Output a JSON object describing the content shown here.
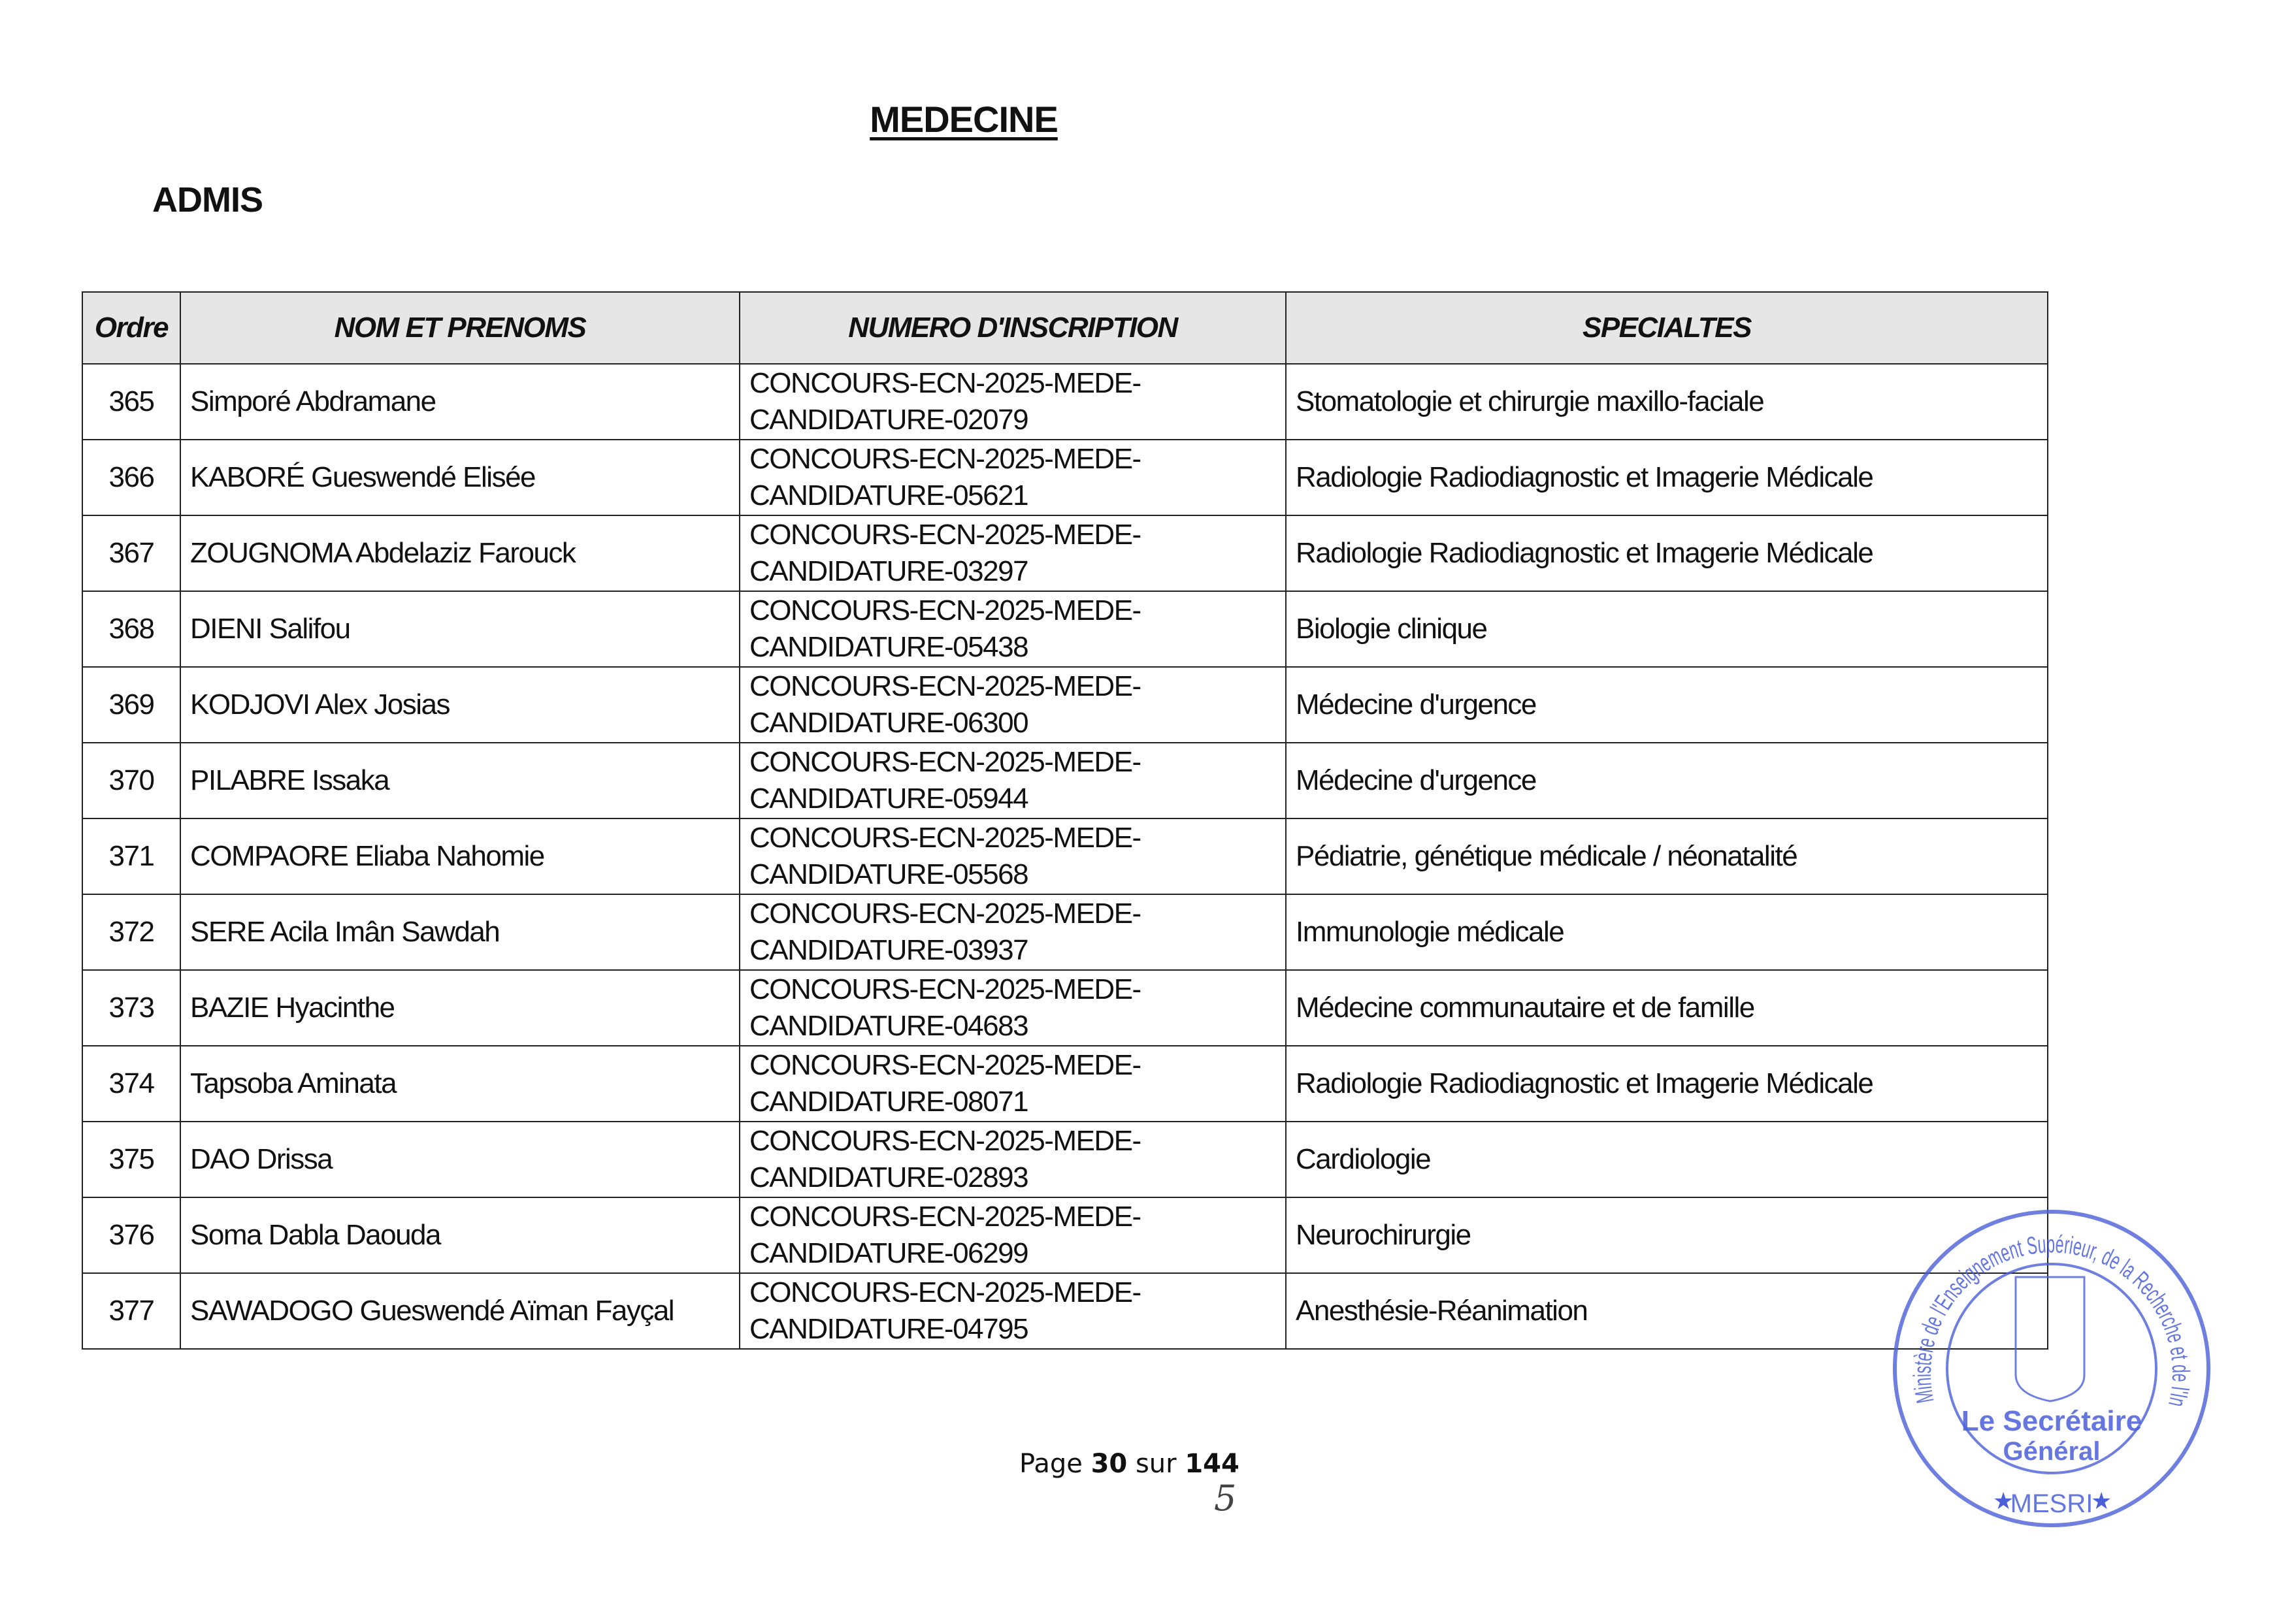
{
  "document": {
    "title": "MEDECINE",
    "section": "ADMIS"
  },
  "table": {
    "headers": [
      "Ordre",
      "NOM ET PRENOMS",
      "NUMERO D'INSCRIPTION",
      "SPECIALTES"
    ],
    "rows": [
      {
        "ordre": "365",
        "nom": "Simporé  Abdramane",
        "num1": "CONCOURS-ECN-2025-MEDE-",
        "num2": "CANDIDATURE-02079",
        "specialite": "Stomatologie et chirurgie maxillo-faciale"
      },
      {
        "ordre": "366",
        "nom": "KABORÉ  Gueswendé Elisée",
        "num1": "CONCOURS-ECN-2025-MEDE-",
        "num2": "CANDIDATURE-05621",
        "specialite": "Radiologie Radiodiagnostic et Imagerie Médicale"
      },
      {
        "ordre": "367",
        "nom": "ZOUGNOMA  Abdelaziz Farouck",
        "num1": "CONCOURS-ECN-2025-MEDE-",
        "num2": "CANDIDATURE-03297",
        "specialite": "Radiologie Radiodiagnostic et Imagerie Médicale"
      },
      {
        "ordre": "368",
        "nom": "DIENI  Salifou",
        "num1": "CONCOURS-ECN-2025-MEDE-",
        "num2": "CANDIDATURE-05438",
        "specialite": "Biologie clinique"
      },
      {
        "ordre": "369",
        "nom": "KODJOVI Alex Josias",
        "num1": "CONCOURS-ECN-2025-MEDE-",
        "num2": "CANDIDATURE-06300",
        "specialite": "Médecine d'urgence"
      },
      {
        "ordre": "370",
        "nom": "PILABRE Issaka",
        "num1": "CONCOURS-ECN-2025-MEDE-",
        "num2": "CANDIDATURE-05944",
        "specialite": "Médecine d'urgence"
      },
      {
        "ordre": "371",
        "nom": "COMPAORE Eliaba Nahomie",
        "num1": "CONCOURS-ECN-2025-MEDE-",
        "num2": "CANDIDATURE-05568",
        "specialite": "Pédiatrie, génétique médicale / néonatalité"
      },
      {
        "ordre": "372",
        "nom": "SERE Acila Imân Sawdah",
        "num1": "CONCOURS-ECN-2025-MEDE-",
        "num2": "CANDIDATURE-03937",
        "specialite": "Immunologie médicale"
      },
      {
        "ordre": "373",
        "nom": "BAZIE  Hyacinthe",
        "num1": "CONCOURS-ECN-2025-MEDE-",
        "num2": "CANDIDATURE-04683",
        "specialite": "Médecine communautaire et de famille"
      },
      {
        "ordre": "374",
        "nom": "Tapsoba Aminata",
        "num1": "CONCOURS-ECN-2025-MEDE-",
        "num2": "CANDIDATURE-08071",
        "specialite": "Radiologie Radiodiagnostic et Imagerie Médicale"
      },
      {
        "ordre": "375",
        "nom": "DAO  Drissa",
        "num1": "CONCOURS-ECN-2025-MEDE-",
        "num2": "CANDIDATURE-02893",
        "specialite": "Cardiologie"
      },
      {
        "ordre": "376",
        "nom": "Soma Dabla Daouda",
        "num1": "CONCOURS-ECN-2025-MEDE-",
        "num2": "CANDIDATURE-06299",
        "specialite": "Neurochirurgie"
      },
      {
        "ordre": "377",
        "nom": "SAWADOGO  Gueswendé Aïman Fayçal",
        "num1": "CONCOURS-ECN-2025-MEDE-",
        "num2": "CANDIDATURE-04795",
        "specialite": "Anesthésie-Réanimation"
      }
    ]
  },
  "footer": {
    "page_label": "Page",
    "page_current": "30",
    "sur_label": "sur",
    "page_total": "144",
    "handwritten_correction": "5"
  },
  "stamp": {
    "ring_text": "Ministère de l'Enseignement Supérieur, de la Recherche et de l'Innovation",
    "center_line1": "Le Secrétaire",
    "center_line2": "Général",
    "bottom_text": "MESRI",
    "color": "#4a5fd8"
  }
}
